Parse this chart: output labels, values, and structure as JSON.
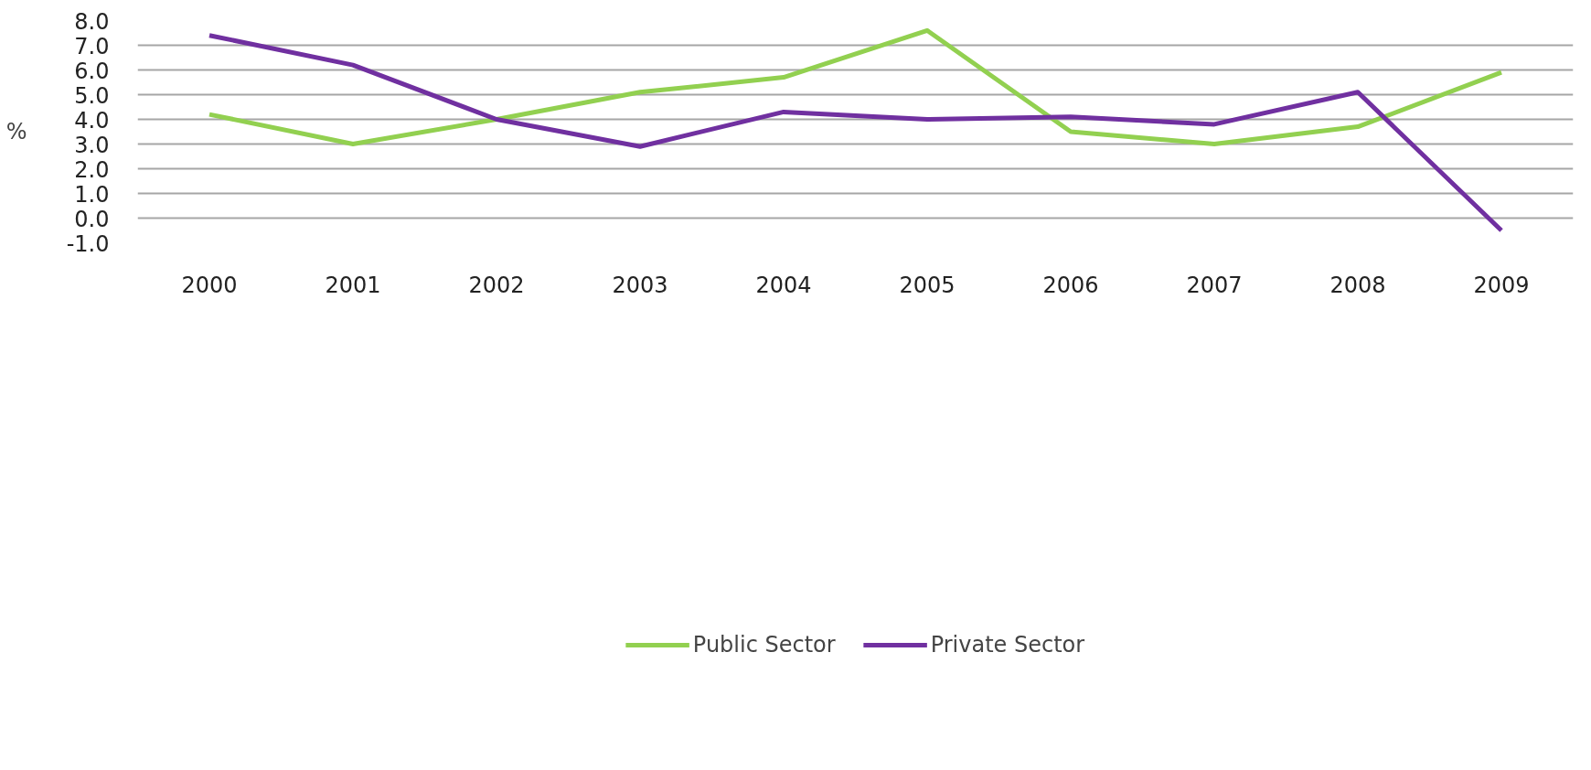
{
  "chart_data": {
    "type": "line",
    "ylabel": "%",
    "categories": [
      "2000",
      "2001",
      "2002",
      "2003",
      "2004",
      "2005",
      "2006",
      "2007",
      "2008",
      "2009"
    ],
    "series": [
      {
        "name": "Public Sector",
        "color": "#92d050",
        "values": [
          4.2,
          3.0,
          4.0,
          5.1,
          5.7,
          7.6,
          3.5,
          3.0,
          3.7,
          5.9
        ]
      },
      {
        "name": "Private Sector",
        "color": "#7030a0",
        "values": [
          7.4,
          6.2,
          4.0,
          2.9,
          4.3,
          4.0,
          4.1,
          3.8,
          5.1,
          -0.5
        ]
      }
    ],
    "ylim": [
      -1,
      8
    ],
    "yticks": [
      {
        "value": -1,
        "label": "-1.0"
      },
      {
        "value": 0,
        "label": "0.0"
      },
      {
        "value": 1,
        "label": "1.0"
      },
      {
        "value": 2,
        "label": "2.0"
      },
      {
        "value": 3,
        "label": "3.0"
      },
      {
        "value": 4,
        "label": "4.0"
      },
      {
        "value": 5,
        "label": "5.0"
      },
      {
        "value": 6,
        "label": "6.0"
      },
      {
        "value": 7,
        "label": "7.0"
      },
      {
        "value": 8,
        "label": "8.0"
      }
    ],
    "grid": "y",
    "legend": "bottom",
    "marker": "none",
    "line_style": "solid"
  }
}
